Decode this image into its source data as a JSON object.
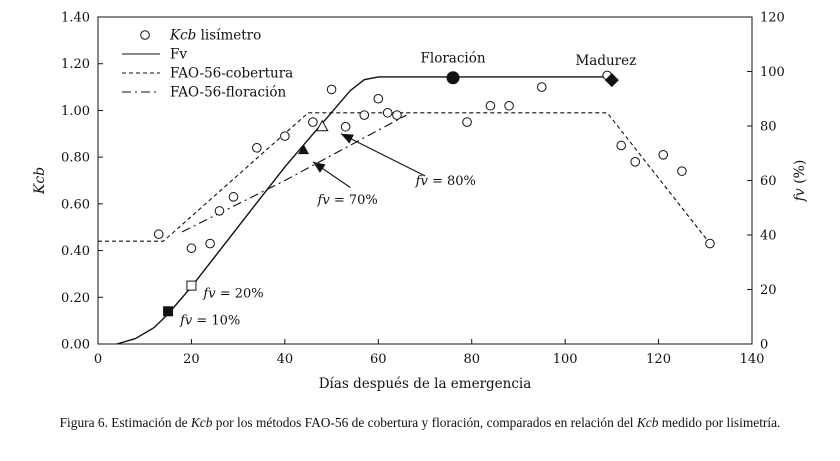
{
  "chart_data": {
    "type": "scatter",
    "xlabel": "Días después de la emergencia",
    "ylabel": "Kcb",
    "y2label": "fv (%)",
    "xlim": [
      0,
      140
    ],
    "ylim": [
      0,
      1.4
    ],
    "y2lim": [
      0,
      120
    ],
    "xticks": [
      0,
      20,
      40,
      60,
      80,
      100,
      120,
      140
    ],
    "yticks": [
      0.0,
      0.2,
      0.4,
      0.6,
      0.8,
      1.0,
      1.2,
      1.4
    ],
    "y2ticks": [
      0,
      20,
      40,
      60,
      80,
      100,
      120
    ],
    "legend_position": "top-left",
    "series": [
      {
        "name": "Kcb lisímetro",
        "style": "open-circle",
        "x": [
          13,
          20,
          24,
          26,
          29,
          34,
          40,
          46,
          50,
          53,
          57,
          60,
          62,
          64,
          79,
          84,
          88,
          95,
          109,
          112,
          115,
          121,
          125,
          131
        ],
        "y": [
          0.47,
          0.41,
          0.43,
          0.57,
          0.63,
          0.84,
          0.89,
          0.95,
          1.09,
          0.93,
          0.98,
          1.05,
          0.99,
          0.98,
          0.95,
          1.02,
          1.02,
          1.1,
          1.15,
          0.85,
          0.78,
          0.81,
          0.74,
          0.43
        ]
      },
      {
        "name": "Fv",
        "style": "solid",
        "axis": "right",
        "x": [
          4,
          8,
          12,
          15,
          20,
          25,
          30,
          35,
          40,
          45,
          50,
          54,
          57,
          60,
          110
        ],
        "y": [
          0,
          2,
          6,
          11,
          21,
          32,
          43,
          54,
          65,
          75,
          85,
          93,
          97,
          98,
          98
        ]
      },
      {
        "name": "FAO-56-cobertura",
        "style": "dashed",
        "x": [
          0,
          14,
          45,
          109,
          131
        ],
        "y": [
          0.44,
          0.44,
          0.99,
          0.99,
          0.43
        ]
      },
      {
        "name": "FAO-56-floración",
        "style": "dash-dot",
        "x": [
          18,
          40,
          66
        ],
        "y": [
          0.48,
          0.7,
          0.98
        ]
      }
    ],
    "markers": [
      {
        "shape": "filled-square",
        "x": 15,
        "y": 0.14,
        "label": "fv = 10%"
      },
      {
        "shape": "open-square",
        "x": 20,
        "y": 0.25,
        "label": "fv = 20%"
      },
      {
        "shape": "filled-triangle",
        "x": 44,
        "y": 0.83,
        "label": ""
      },
      {
        "shape": "open-triangle",
        "x": 48,
        "y": 0.93,
        "label": ""
      },
      {
        "shape": "filled-circle",
        "x": 76,
        "y": 1.14,
        "label": "Floración"
      },
      {
        "shape": "filled-diamond",
        "x": 110,
        "y": 1.13,
        "label": "Madurez"
      }
    ],
    "annotations": [
      {
        "text": "fv = 70%",
        "x": 47,
        "y": 0.6
      },
      {
        "text": "fv = 80%",
        "x": 68,
        "y": 0.68
      }
    ]
  },
  "caption": {
    "part1": "Figura 6. Estimación de ",
    "part2": "Kcb",
    "part3": " por los métodos FAO-56 de cobertura y floración, comparados en relación del ",
    "part4": "Kcb",
    "part5": " medido por lisimetría."
  }
}
